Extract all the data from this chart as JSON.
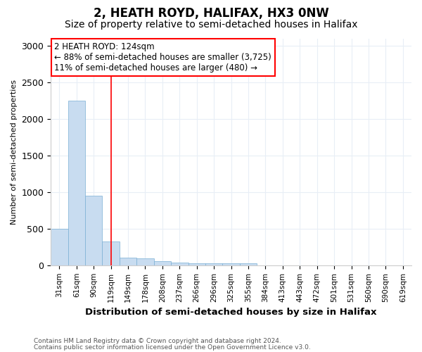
{
  "title": "2, HEATH ROYD, HALIFAX, HX3 0NW",
  "subtitle": "Size of property relative to semi-detached houses in Halifax",
  "xlabel": "Distribution of semi-detached houses by size in Halifax",
  "ylabel": "Number of semi-detached properties",
  "footnote1": "Contains HM Land Registry data © Crown copyright and database right 2024.",
  "footnote2": "Contains public sector information licensed under the Open Government Licence v3.0.",
  "annotation_title": "2 HEATH ROYD: 124sqm",
  "annotation_line2": "← 88% of semi-detached houses are smaller (3,725)",
  "annotation_line3": "11% of semi-detached houses are larger (480) →",
  "bin_labels": [
    "31sqm",
    "61sqm",
    "90sqm",
    "119sqm",
    "149sqm",
    "178sqm",
    "208sqm",
    "237sqm",
    "266sqm",
    "296sqm",
    "325sqm",
    "355sqm",
    "384sqm",
    "413sqm",
    "443sqm",
    "472sqm",
    "501sqm",
    "531sqm",
    "560sqm",
    "590sqm",
    "619sqm"
  ],
  "bar_values": [
    500,
    2250,
    950,
    325,
    100,
    90,
    60,
    40,
    30,
    30,
    30,
    30,
    0,
    0,
    0,
    0,
    0,
    0,
    0,
    0,
    0
  ],
  "bar_color": "#c8dcf0",
  "bar_edge_color": "#7aafd4",
  "red_line_x": 3.0,
  "ylim": [
    0,
    3100
  ],
  "yticks": [
    0,
    500,
    1000,
    1500,
    2000,
    2500,
    3000
  ],
  "bg_color": "#ffffff",
  "grid_color": "#e8eef6",
  "title_fontsize": 12,
  "subtitle_fontsize": 10
}
